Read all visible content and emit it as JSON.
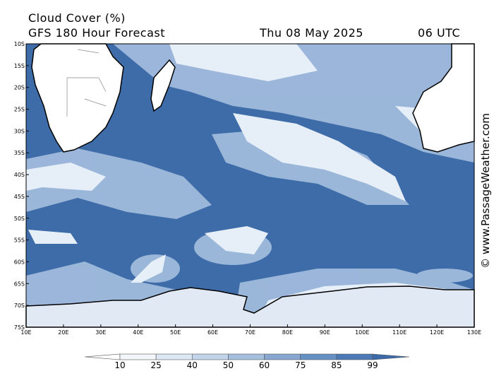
{
  "header": {
    "title": "Cloud Cover (%)",
    "subtitle": "GFS 180 Hour Forecast",
    "date": "Thu 08 May 2025",
    "time": "06 UTC"
  },
  "map": {
    "lat_labels": [
      "10S",
      "15S",
      "20S",
      "25S",
      "30S",
      "35S",
      "40S",
      "45S",
      "50S",
      "55S",
      "60S",
      "65S",
      "70S",
      "75S"
    ],
    "lon_labels": [
      "10E",
      "20E",
      "30E",
      "40E",
      "50E",
      "60E",
      "70E",
      "80E",
      "90E",
      "100E",
      "110E",
      "120E",
      "130E"
    ],
    "watermark": "© www.PassageWeather.com"
  },
  "legend": {
    "levels": [
      10,
      25,
      40,
      50,
      60,
      75,
      85,
      99
    ],
    "colors": [
      "#ffffff",
      "#f3f7fc",
      "#dde8f4",
      "#c3d5ea",
      "#a5bfdf",
      "#85a7d2",
      "#6590c4",
      "#4b79b5",
      "#3c6aa8"
    ]
  }
}
